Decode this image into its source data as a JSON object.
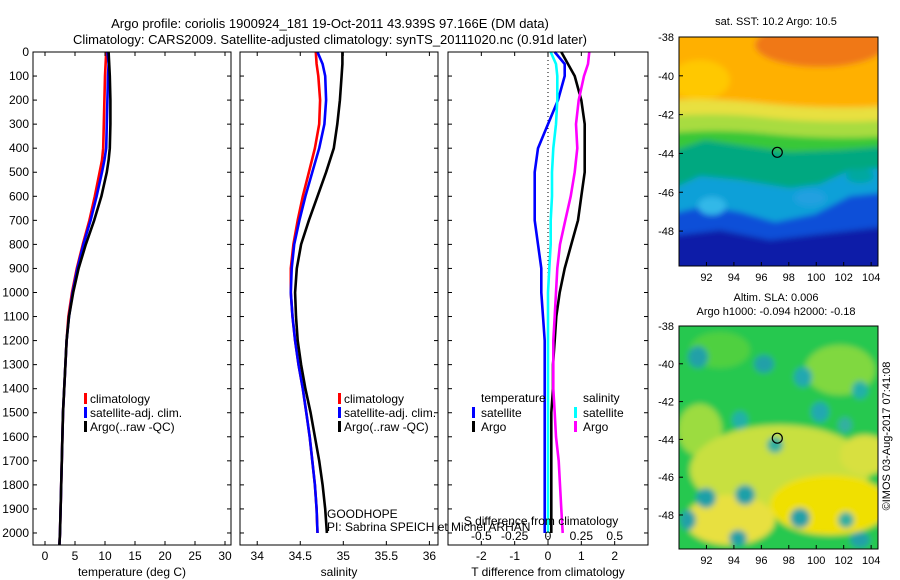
{
  "title_line1": "Argo profile: coriolis 1900924_181 19-Oct-2011 43.939S 97.166E (DM data)",
  "title_line2": "Climatology: CARS2009. Satellite-adjusted climatology: synTS_20111020.nc (0.91d later)",
  "timestamp": "©IMOS 03-Aug-2017 07:41:08",
  "colors": {
    "clim": "#ff0000",
    "sat": "#0000ff",
    "argo": "#000000",
    "s_sat": "#00ffff",
    "s_argo": "#ff00ff"
  },
  "chart_data": [
    {
      "type": "line",
      "xlabel": "temperature (deg C)",
      "xlim": [
        -2,
        31
      ],
      "ylim": [
        0,
        2050
      ],
      "xticks": [
        0,
        5,
        10,
        15,
        20,
        25,
        30
      ],
      "yticks": [
        0,
        100,
        200,
        300,
        400,
        500,
        600,
        700,
        800,
        900,
        1000,
        1100,
        1200,
        1300,
        1400,
        1500,
        1600,
        1700,
        1800,
        1900,
        2000
      ],
      "legend": [
        "climatology",
        "satellite-adj. clim.",
        "Argo(..raw -QC)"
      ],
      "legend_placement": "lower-center",
      "depth": [
        0,
        50,
        100,
        200,
        300,
        400,
        450,
        500,
        600,
        700,
        800,
        900,
        1000,
        1100,
        1200,
        1300,
        1400,
        1500,
        1600,
        1700,
        1800,
        1900,
        2000,
        2050
      ],
      "series": [
        {
          "name": "climatology",
          "color": "#ff0000",
          "values": [
            10.2,
            10.1,
            10.0,
            9.9,
            9.8,
            9.7,
            9.5,
            9.1,
            8.3,
            7.4,
            6.3,
            5.3,
            4.5,
            3.9,
            3.6,
            3.4,
            3.2,
            3.0,
            2.9,
            2.8,
            2.7,
            2.6,
            2.5,
            2.4
          ]
        },
        {
          "name": "satellite-adj. clim.",
          "color": "#0000ff",
          "values": [
            10.4,
            10.6,
            10.5,
            10.4,
            10.3,
            10.2,
            9.9,
            9.5,
            8.6,
            7.6,
            6.4,
            5.4,
            4.6,
            4.0,
            3.6,
            3.4,
            3.2,
            3.0,
            2.9,
            2.8,
            2.7,
            2.6,
            2.5,
            2.4
          ]
        },
        {
          "name": "Argo(..raw -QC)",
          "color": "#000000",
          "values": [
            10.6,
            10.7,
            10.8,
            10.9,
            10.9,
            10.8,
            10.6,
            10.3,
            9.4,
            8.2,
            6.8,
            5.6,
            4.7,
            4.0,
            3.6,
            3.4,
            3.2,
            3.0,
            2.9,
            2.8,
            2.7,
            2.6,
            2.5,
            2.4
          ]
        }
      ]
    },
    {
      "type": "line",
      "xlabel": "salinity",
      "xlim": [
        33.8,
        36.1
      ],
      "ylim": [
        0,
        2050
      ],
      "xticks": [
        34,
        34.5,
        35,
        35.5,
        36
      ],
      "legend": [
        "climatology",
        "satellite-adj. clim.",
        "Argo(..raw -QC)"
      ],
      "legend_placement": "lower-right",
      "annotations": [
        "GOODHOPE",
        "PI: Sabrina SPEICH et Michel ARHAN"
      ],
      "depth": [
        0,
        50,
        100,
        200,
        300,
        400,
        500,
        600,
        700,
        800,
        900,
        1000,
        1100,
        1200,
        1300,
        1400,
        1500,
        1600,
        1700,
        1800,
        1900,
        2000
      ],
      "series": [
        {
          "name": "climatology",
          "color": "#ff0000",
          "values": [
            34.68,
            34.69,
            34.71,
            34.73,
            34.72,
            34.67,
            34.6,
            34.53,
            34.47,
            34.42,
            34.39,
            34.39,
            34.41,
            34.44,
            34.48,
            34.53,
            34.57,
            34.61,
            34.64,
            34.67,
            34.69,
            34.7
          ]
        },
        {
          "name": "satellite-adj. clim.",
          "color": "#0000ff",
          "values": [
            34.7,
            34.76,
            34.79,
            34.8,
            34.78,
            34.72,
            34.64,
            34.56,
            34.49,
            34.43,
            34.4,
            34.39,
            34.41,
            34.44,
            34.48,
            34.53,
            34.57,
            34.61,
            34.64,
            34.67,
            34.69,
            34.7
          ]
        },
        {
          "name": "Argo(..raw -QC)",
          "color": "#000000",
          "values": [
            34.99,
            34.99,
            34.98,
            34.96,
            34.93,
            34.89,
            34.8,
            34.7,
            34.6,
            34.51,
            34.46,
            34.44,
            34.45,
            34.47,
            34.51,
            34.56,
            34.62,
            34.67,
            34.72,
            34.76,
            34.79,
            34.81
          ]
        }
      ]
    },
    {
      "type": "line",
      "xlabel": "T difference from climatology",
      "xlabel_top": "S difference from climatology",
      "xlim": [
        -3,
        3
      ],
      "ylim": [
        0,
        2050
      ],
      "xticks": [
        -2,
        -1,
        0,
        1,
        2
      ],
      "xticks_top": [
        "-0.5",
        "-0.25",
        "0",
        "0.25",
        "0.5"
      ],
      "legend_groups": [
        "temperature",
        "salinity"
      ],
      "legend": [
        "satellite",
        "Argo",
        "satellite",
        "Argo"
      ],
      "legend_placement": "lower-center",
      "depth": [
        0,
        50,
        100,
        200,
        300,
        400,
        500,
        600,
        700,
        800,
        900,
        1000,
        1100,
        1200,
        1300,
        1400,
        1500,
        1600,
        1700,
        1800,
        1900,
        2000
      ],
      "series": [
        {
          "name": "satellite",
          "group": "temperature",
          "color": "#0000ff",
          "values": [
            0.2,
            0.5,
            0.5,
            0.3,
            0.0,
            -0.3,
            -0.4,
            -0.4,
            -0.4,
            -0.3,
            -0.2,
            -0.2,
            -0.15,
            -0.1,
            -0.1,
            -0.1,
            -0.1,
            -0.1,
            -0.1,
            -0.1,
            -0.1,
            -0.1
          ]
        },
        {
          "name": "Argo",
          "group": "temperature",
          "color": "#000000",
          "values": [
            0.4,
            0.6,
            0.8,
            1.0,
            1.1,
            1.1,
            1.1,
            1.0,
            0.9,
            0.7,
            0.5,
            0.35,
            0.25,
            0.2,
            0.15,
            0.15,
            0.1,
            0.1,
            0.1,
            0.1,
            0.1,
            0.1
          ]
        },
        {
          "name": "satellite",
          "group": "salinity",
          "color": "#00ffff",
          "values": [
            0.02,
            0.06,
            0.07,
            0.07,
            0.06,
            0.04,
            0.03,
            0.03,
            0.02,
            0.02,
            0.01,
            0.0,
            0.0,
            0.0,
            0.0,
            0.0,
            0.0,
            0.0,
            0.0,
            0.0,
            0.0,
            0.0
          ]
        },
        {
          "name": "Argo",
          "group": "salinity",
          "color": "#ff00ff",
          "values": [
            0.31,
            0.3,
            0.27,
            0.23,
            0.21,
            0.22,
            0.2,
            0.17,
            0.13,
            0.09,
            0.07,
            0.06,
            0.05,
            0.04,
            0.04,
            0.04,
            0.05,
            0.06,
            0.08,
            0.09,
            0.1,
            0.11
          ]
        }
      ]
    },
    {
      "type": "heatmap",
      "title": "sat. SST: 10.2  Argo: 10.5",
      "xlim": [
        90,
        104.5
      ],
      "ylim": [
        -49.8,
        -38
      ],
      "xticks": [
        92,
        94,
        96,
        98,
        100,
        102,
        104
      ],
      "yticks": [
        -38,
        -40,
        -42,
        -44,
        -46,
        -48
      ],
      "marker": {
        "lon": 97.166,
        "lat": -43.939
      }
    },
    {
      "type": "heatmap",
      "title": "Altim. SLA: 0.006",
      "subtitle": "Argo h1000: -0.094 h2000: -0.18",
      "xlim": [
        90,
        104.5
      ],
      "ylim": [
        -49.8,
        -38
      ],
      "xticks": [
        92,
        94,
        96,
        98,
        100,
        102,
        104
      ],
      "yticks": [
        -38,
        -40,
        -42,
        -44,
        -46,
        -48
      ],
      "marker": {
        "lon": 97.166,
        "lat": -43.939
      }
    }
  ]
}
